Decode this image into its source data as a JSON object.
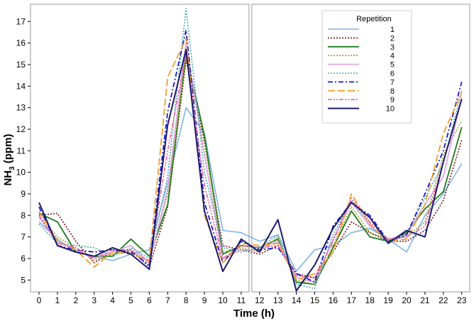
{
  "chart_data": {
    "type": "line",
    "xlabel": "Time (h)",
    "ylabel_main": "NH",
    "ylabel_sub": "3",
    "ylabel_suffix": "  (ppm)",
    "x": [
      0,
      1,
      2,
      3,
      4,
      5,
      6,
      7,
      8,
      9,
      10,
      11,
      12,
      13,
      14,
      15,
      16,
      17,
      18,
      19,
      20,
      21,
      22,
      23
    ],
    "xticks": [
      "0",
      "1",
      "2",
      "3",
      "4",
      "5",
      "6",
      "7",
      "8",
      "9",
      "10",
      "11",
      "12",
      "13",
      "14",
      "15",
      "16",
      "17",
      "18",
      "19",
      "20",
      "21",
      "22",
      "23"
    ],
    "yticks": [
      "5",
      "6",
      "7",
      "8",
      "9",
      "10",
      "11",
      "12",
      "13",
      "14",
      "15",
      "16",
      "17"
    ],
    "ylim": [
      4.45,
      17.8
    ],
    "xlim": [
      -0.5,
      23.3
    ],
    "grid": false,
    "panel_break_after_hour": 11,
    "legend": {
      "title": "Repetition",
      "position": "top-right"
    },
    "series": [
      {
        "name": "1",
        "color": "#7fb3e8",
        "dash": "",
        "width": 1.6,
        "values": [
          7.7,
          6.9,
          6.3,
          6.1,
          5.9,
          6.2,
          6.4,
          9.5,
          13.0,
          11.8,
          7.3,
          7.2,
          6.8,
          7.1,
          5.4,
          6.4,
          6.6,
          7.2,
          7.4,
          6.9,
          6.3,
          8.0,
          9.0,
          10.4
        ]
      },
      {
        "name": "2",
        "color": "#7b1515",
        "dash": "2,2",
        "width": 1.6,
        "values": [
          8.0,
          8.1,
          6.8,
          5.8,
          6.3,
          6.4,
          5.6,
          8.4,
          15.2,
          11.5,
          6.6,
          6.4,
          6.2,
          6.6,
          5.3,
          5.1,
          6.3,
          7.7,
          7.2,
          6.8,
          6.8,
          7.3,
          8.7,
          11.5
        ]
      },
      {
        "name": "3",
        "color": "#1e7a1e",
        "dash": "",
        "width": 1.8,
        "values": [
          8.1,
          7.7,
          6.3,
          6.1,
          6.1,
          6.9,
          6.1,
          8.5,
          15.5,
          11.7,
          6.2,
          6.6,
          6.5,
          6.9,
          4.9,
          4.8,
          6.5,
          8.2,
          7.0,
          6.8,
          7.2,
          8.3,
          9.1,
          12.1
        ]
      },
      {
        "name": "4",
        "color": "#9aa32a",
        "dash": "2,2",
        "width": 1.6,
        "values": [
          8.0,
          7.0,
          6.5,
          5.9,
          6.2,
          6.3,
          5.9,
          9.0,
          15.3,
          11.3,
          6.3,
          6.5,
          6.3,
          7.0,
          5.0,
          4.8,
          6.6,
          8.4,
          7.2,
          6.9,
          7.0,
          7.7,
          10.8,
          12.4
        ]
      },
      {
        "name": "5",
        "color": "#dfa0df",
        "dash": "",
        "width": 1.6,
        "values": [
          7.9,
          6.8,
          6.4,
          6.0,
          6.3,
          6.6,
          5.8,
          9.2,
          16.0,
          10.8,
          6.0,
          6.4,
          6.4,
          6.8,
          5.1,
          4.9,
          6.9,
          8.6,
          7.5,
          6.9,
          7.1,
          8.5,
          9.8,
          13.5
        ]
      },
      {
        "name": "6",
        "color": "#4aaaaa",
        "dash": "2,2",
        "width": 1.6,
        "values": [
          7.6,
          6.7,
          6.6,
          6.5,
          6.1,
          6.5,
          6.0,
          9.8,
          17.6,
          10.0,
          6.5,
          6.3,
          6.5,
          7.1,
          4.8,
          4.6,
          7.1,
          8.7,
          7.6,
          6.7,
          7.1,
          8.8,
          10.4,
          13.8
        ]
      },
      {
        "name": "7",
        "color": "#1a1acc",
        "dash": "7,3,2,3",
        "width": 1.8,
        "values": [
          8.4,
          6.6,
          6.4,
          6.3,
          6.4,
          6.3,
          5.7,
          12.8,
          16.6,
          8.6,
          5.8,
          6.8,
          6.4,
          6.5,
          5.3,
          4.9,
          7.5,
          8.6,
          8.0,
          6.8,
          7.1,
          9.0,
          11.0,
          14.2
        ]
      },
      {
        "name": "8",
        "color": "#f0a030",
        "dash": "10,4",
        "width": 1.8,
        "values": [
          8.2,
          6.8,
          6.4,
          5.6,
          6.3,
          6.2,
          5.9,
          14.4,
          16.2,
          8.0,
          5.8,
          6.7,
          6.6,
          6.7,
          5.0,
          5.3,
          6.3,
          9.0,
          7.6,
          6.8,
          6.9,
          8.5,
          11.8,
          13.7
        ]
      },
      {
        "name": "9",
        "color": "#ee60a0",
        "dash": "6,2,2,2,2,2",
        "width": 1.6,
        "values": [
          8.0,
          6.7,
          6.5,
          6.0,
          6.4,
          6.4,
          5.8,
          11.0,
          15.5,
          9.4,
          6.0,
          6.6,
          6.5,
          6.6,
          5.2,
          5.1,
          6.8,
          8.8,
          7.7,
          6.9,
          7.0,
          7.5,
          10.5,
          13.4
        ]
      },
      {
        "name": "10",
        "color": "#1c1a6e",
        "dash": "",
        "width": 2.0,
        "values": [
          8.6,
          6.6,
          6.3,
          6.1,
          6.5,
          6.2,
          5.5,
          12.2,
          15.7,
          8.2,
          5.4,
          6.9,
          6.3,
          7.8,
          4.5,
          5.7,
          7.4,
          8.6,
          7.9,
          6.7,
          7.3,
          7.0,
          10.5,
          13.4
        ]
      }
    ]
  }
}
